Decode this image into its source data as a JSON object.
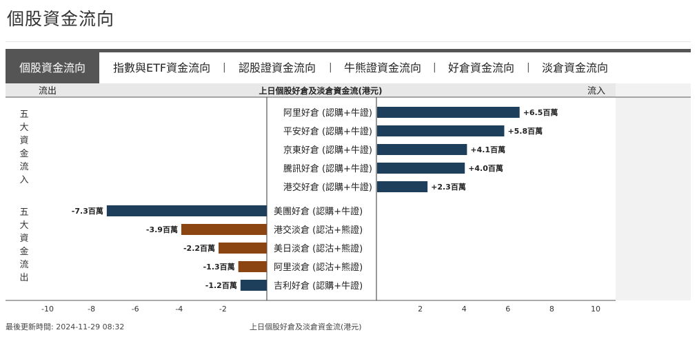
{
  "page": {
    "title": "個股資金流向"
  },
  "tabs": [
    {
      "label": "個股資金流向",
      "active": true
    },
    {
      "label": "指數與ETF資金流向",
      "active": false
    },
    {
      "label": "認股證資金流向",
      "active": false
    },
    {
      "label": "牛熊證資金流向",
      "active": false
    },
    {
      "label": "好倉資金流向",
      "active": false
    },
    {
      "label": "淡倉資金流向",
      "active": false
    }
  ],
  "tab_separator": "|",
  "colors": {
    "inflow": "#1d3f5c",
    "outflow_bear": "#8b4513",
    "outflow_bull": "#1d3f5c",
    "tab_active_bg": "#555555",
    "header_band": "#e8e8e8"
  },
  "chart_data": {
    "type": "bar",
    "orientation": "horizontal",
    "title": "上日個股好倉及淡倉資金流(港元)",
    "left_header": "流出",
    "right_header": "流入",
    "group_labels": [
      "五大資金流入",
      "五大資金流出"
    ],
    "unit": "百萬",
    "xlim": [
      -11,
      11
    ],
    "left_ticks": [
      -10,
      -8,
      -6,
      -4,
      -2
    ],
    "right_ticks": [
      2,
      4,
      6,
      8,
      10
    ],
    "inflow": [
      {
        "label": "阿里好倉 (認購+牛證)",
        "value": 6.5,
        "text": "+6.5百萬",
        "kind": "bull"
      },
      {
        "label": "平安好倉 (認購+牛證)",
        "value": 5.8,
        "text": "+5.8百萬",
        "kind": "bull"
      },
      {
        "label": "京東好倉 (認購+牛證)",
        "value": 4.1,
        "text": "+4.1百萬",
        "kind": "bull"
      },
      {
        "label": "騰訊好倉 (認購+牛證)",
        "value": 4.0,
        "text": "+4.0百萬",
        "kind": "bull"
      },
      {
        "label": "港交好倉 (認購+牛證)",
        "value": 2.3,
        "text": "+2.3百萬",
        "kind": "bull"
      }
    ],
    "outflow": [
      {
        "label": "美團好倉 (認購+牛證)",
        "value": -7.3,
        "text": "-7.3百萬",
        "kind": "bull"
      },
      {
        "label": "港交淡倉 (認沽+熊證)",
        "value": -3.9,
        "text": "-3.9百萬",
        "kind": "bear"
      },
      {
        "label": "美日淡倉 (認沽+熊證)",
        "value": -2.2,
        "text": "-2.2百萬",
        "kind": "bear"
      },
      {
        "label": "阿里淡倉 (認沽+熊證)",
        "value": -1.3,
        "text": "-1.3百萬",
        "kind": "bear"
      },
      {
        "label": "吉利好倉 (認購+牛證)",
        "value": -1.2,
        "text": "-1.2百萬",
        "kind": "bull"
      }
    ]
  },
  "footer": {
    "updated_label": "最後更新時間: 2024-11-29 08:32",
    "caption": "上日個股好倉及淡倉資金流(港元)"
  }
}
